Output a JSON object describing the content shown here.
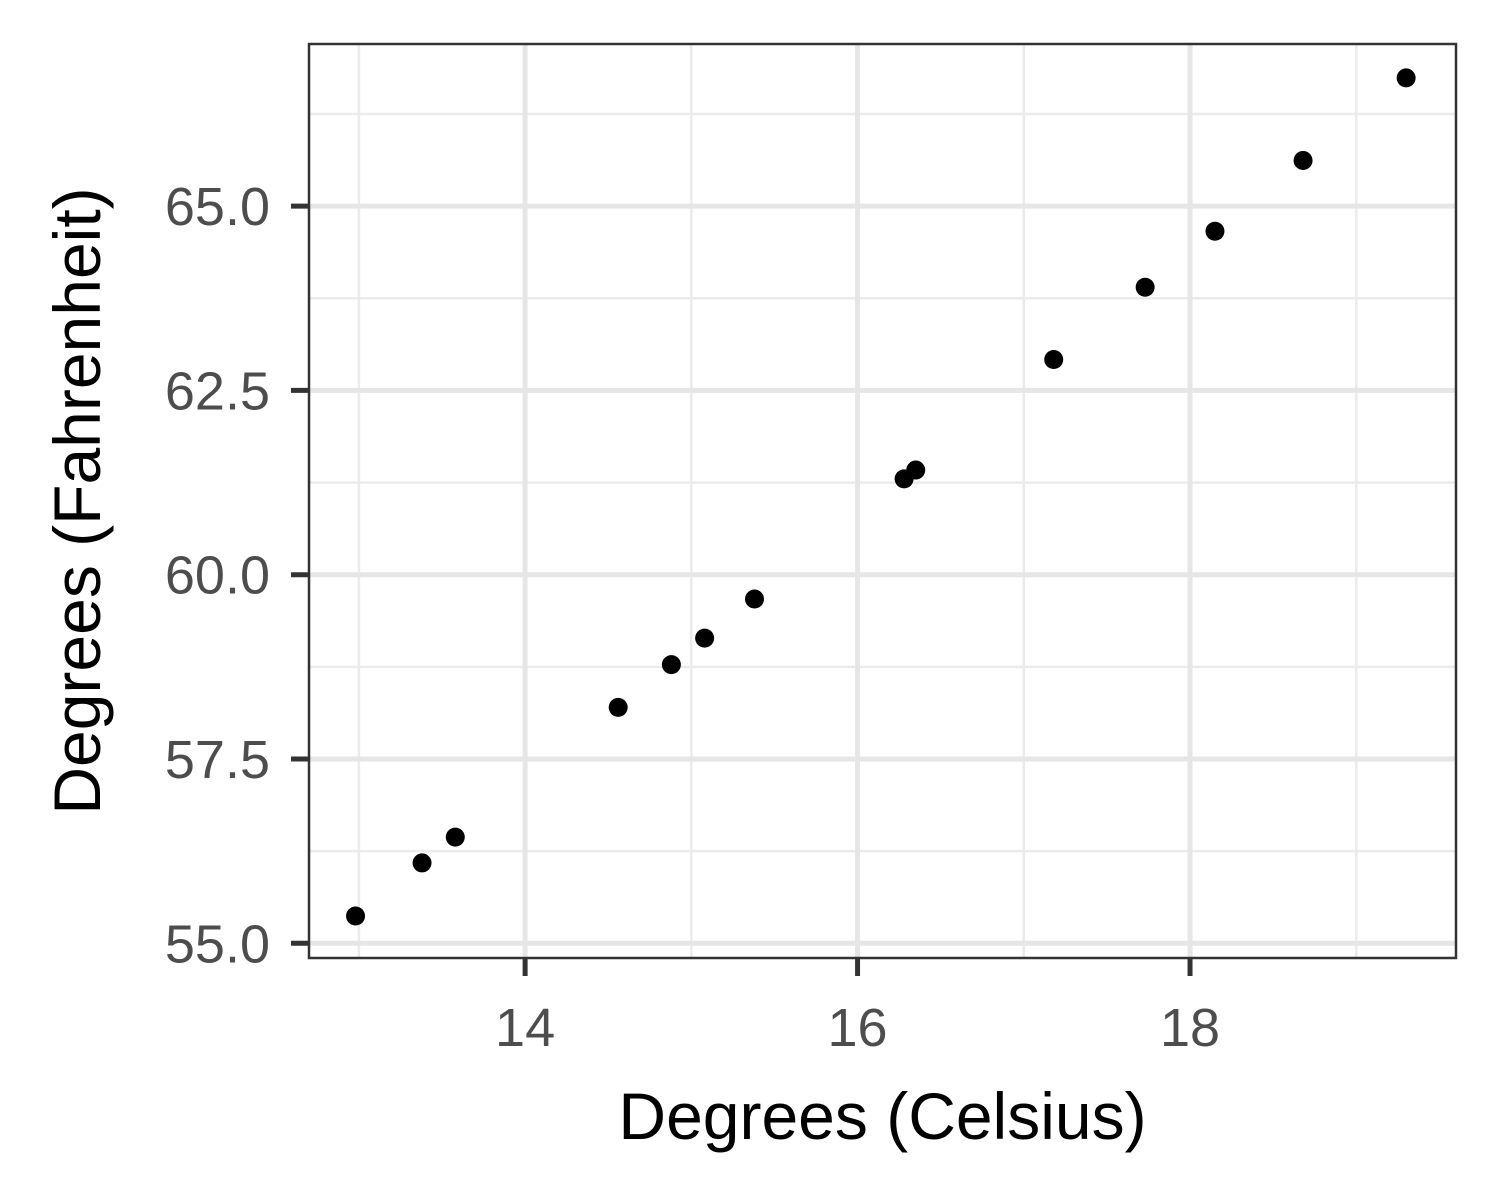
{
  "chart_data": {
    "type": "scatter",
    "title": "",
    "xlabel": "Degrees (Celsius)",
    "ylabel": "Degrees (Fahrenheit)",
    "xlim": [
      12.7,
      19.6
    ],
    "ylim": [
      54.8,
      67.2
    ],
    "x_ticks": [
      14,
      16,
      18
    ],
    "x_tick_labels": [
      "14",
      "16",
      "18"
    ],
    "y_ticks": [
      55.0,
      57.5,
      60.0,
      62.5,
      65.0
    ],
    "y_tick_labels": [
      "55.0",
      "57.5",
      "60.0",
      "62.5",
      "65.0"
    ],
    "grid": true,
    "legend": "none",
    "point_color": "#000000",
    "points": [
      {
        "x": 12.98,
        "y": 55.37
      },
      {
        "x": 13.38,
        "y": 56.09
      },
      {
        "x": 13.58,
        "y": 56.44
      },
      {
        "x": 14.56,
        "y": 58.2
      },
      {
        "x": 14.88,
        "y": 58.78
      },
      {
        "x": 15.08,
        "y": 59.14
      },
      {
        "x": 15.38,
        "y": 59.67
      },
      {
        "x": 16.28,
        "y": 61.3
      },
      {
        "x": 16.35,
        "y": 61.42
      },
      {
        "x": 17.18,
        "y": 62.92
      },
      {
        "x": 17.73,
        "y": 63.9
      },
      {
        "x": 18.15,
        "y": 64.66
      },
      {
        "x": 18.68,
        "y": 65.62
      },
      {
        "x": 19.3,
        "y": 66.74
      }
    ]
  }
}
